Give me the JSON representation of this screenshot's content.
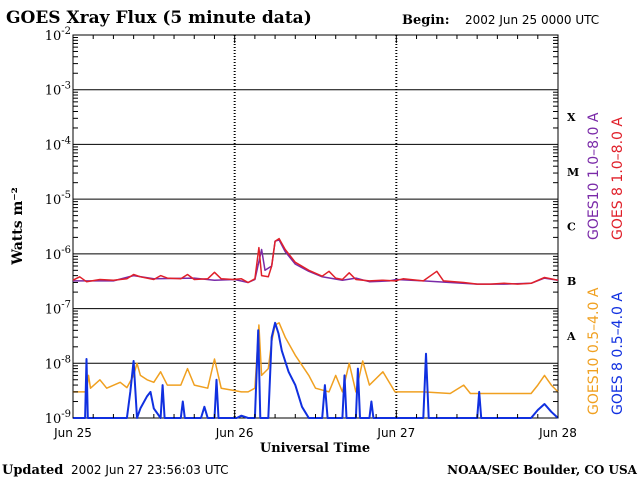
{
  "header": {
    "title": "GOES Xray Flux (5 minute data)",
    "begin_label": "Begin:",
    "begin_value": "2002 Jun 25 0000 UTC"
  },
  "footer": {
    "updated_label": "Updated",
    "updated_value": "2002 Jun 27 23:56:03 UTC",
    "source": "NOAA/SEC Boulder, CO USA"
  },
  "chart_data": {
    "type": "line",
    "title": "GOES Xray Flux (5 minute data)",
    "xlabel": "Universal Time",
    "ylabel": "Watts m⁻²",
    "y_scale": "log",
    "ylim": [
      1e-09,
      0.01
    ],
    "xlim_hours": [
      0,
      72
    ],
    "x_ticks": [
      {
        "h": 0,
        "label": "Jun 25"
      },
      {
        "h": 24,
        "label": "Jun 26"
      },
      {
        "h": 48,
        "label": "Jun 27"
      },
      {
        "h": 72,
        "label": "Jun 28"
      }
    ],
    "y_ticks": [
      {
        "exp": -2,
        "base": "10",
        "sup": "-2"
      },
      {
        "exp": -3,
        "base": "10",
        "sup": "-3"
      },
      {
        "exp": -4,
        "base": "10",
        "sup": "-4"
      },
      {
        "exp": -5,
        "base": "10",
        "sup": "-5"
      },
      {
        "exp": -6,
        "base": "10",
        "sup": "-6"
      },
      {
        "exp": -7,
        "base": "10",
        "sup": "-7"
      },
      {
        "exp": -8,
        "base": "10",
        "sup": "-8"
      },
      {
        "exp": -9,
        "base": "10",
        "sup": "-9"
      }
    ],
    "flare_classes": [
      {
        "label": "X",
        "exp": -3.5
      },
      {
        "label": "M",
        "exp": -4.5
      },
      {
        "label": "C",
        "exp": -5.5
      },
      {
        "label": "B",
        "exp": -6.5
      },
      {
        "label": "A",
        "exp": -7.5
      }
    ],
    "grid": true,
    "legend": [
      {
        "label": "GOES10 1.0–8.0 A",
        "color": "#7a2aa8"
      },
      {
        "label": "GOES 8 1.0–8.0 A",
        "color": "#e0202a"
      },
      {
        "label": "GOES10 0.5–4.0 A",
        "color": "#f0a020"
      },
      {
        "label": "GOES 8 0.5–4.0 A",
        "color": "#1030e0"
      }
    ],
    "series": [
      {
        "name": "GOES10 1.0–8.0 A",
        "color": "#7a2aa8",
        "points": [
          [
            0,
            3.2e-07
          ],
          [
            6,
            3.2e-07
          ],
          [
            9,
            4e-07
          ],
          [
            12,
            3.5e-07
          ],
          [
            18,
            3.6e-07
          ],
          [
            21,
            3.3e-07
          ],
          [
            24,
            3.4e-07
          ],
          [
            26,
            3e-07
          ],
          [
            27,
            3.4e-07
          ],
          [
            28,
            1.2e-06
          ],
          [
            28.5,
            5e-07
          ],
          [
            29.5,
            6e-07
          ],
          [
            30,
            1.7e-06
          ],
          [
            30.6,
            1.8e-06
          ],
          [
            31.5,
            1.1e-06
          ],
          [
            33,
            6.5e-07
          ],
          [
            35,
            4.8e-07
          ],
          [
            37,
            3.8e-07
          ],
          [
            40,
            3.3e-07
          ],
          [
            42,
            3.6e-07
          ],
          [
            44,
            3.1e-07
          ],
          [
            47,
            3.2e-07
          ],
          [
            48,
            3.4e-07
          ],
          [
            52,
            3.2e-07
          ],
          [
            56,
            3e-07
          ],
          [
            60,
            2.8e-07
          ],
          [
            64,
            2.8e-07
          ],
          [
            68,
            2.9e-07
          ],
          [
            70,
            3.6e-07
          ],
          [
            72,
            3.3e-07
          ]
        ]
      },
      {
        "name": "GOES 8 1.0–8.0 A",
        "color": "#e0202a",
        "points": [
          [
            0,
            3.3e-07
          ],
          [
            1,
            3.8e-07
          ],
          [
            2,
            3.1e-07
          ],
          [
            4,
            3.4e-07
          ],
          [
            6,
            3.3e-07
          ],
          [
            8,
            3.5e-07
          ],
          [
            9,
            4.2e-07
          ],
          [
            10,
            3.8e-07
          ],
          [
            12,
            3.4e-07
          ],
          [
            13,
            4e-07
          ],
          [
            14,
            3.6e-07
          ],
          [
            16,
            3.5e-07
          ],
          [
            17,
            4.2e-07
          ],
          [
            18,
            3.4e-07
          ],
          [
            20,
            3.5e-07
          ],
          [
            21,
            4.6e-07
          ],
          [
            22,
            3.5e-07
          ],
          [
            23.8,
            3.4e-07
          ],
          [
            25,
            3.5e-07
          ],
          [
            26,
            3e-07
          ],
          [
            27,
            3.5e-07
          ],
          [
            27.6,
            1.3e-06
          ],
          [
            28,
            4e-07
          ],
          [
            29,
            3.8e-07
          ],
          [
            29.5,
            6e-07
          ],
          [
            30,
            1.7e-06
          ],
          [
            30.6,
            1.9e-06
          ],
          [
            31.5,
            1.2e-06
          ],
          [
            33,
            7e-07
          ],
          [
            35,
            5e-07
          ],
          [
            37,
            3.9e-07
          ],
          [
            38,
            4.8e-07
          ],
          [
            39,
            3.6e-07
          ],
          [
            40,
            3.4e-07
          ],
          [
            41,
            4.5e-07
          ],
          [
            42,
            3.4e-07
          ],
          [
            44,
            3.2e-07
          ],
          [
            46,
            3.3e-07
          ],
          [
            47.8,
            3.2e-07
          ],
          [
            49,
            3.5e-07
          ],
          [
            52,
            3.2e-07
          ],
          [
            54,
            4.8e-07
          ],
          [
            55,
            3.2e-07
          ],
          [
            58,
            3e-07
          ],
          [
            60,
            2.8e-07
          ],
          [
            62,
            2.8e-07
          ],
          [
            64,
            2.9e-07
          ],
          [
            66,
            2.8e-07
          ],
          [
            68,
            2.9e-07
          ],
          [
            70,
            3.7e-07
          ],
          [
            72,
            3.3e-07
          ]
        ]
      },
      {
        "name": "GOES10 0.5–4.0 A",
        "color": "#f0a020",
        "points": [
          [
            0,
            3e-09
          ],
          [
            2,
            3e-09
          ],
          [
            2.3,
            6e-09
          ],
          [
            2.6,
            3.5e-09
          ],
          [
            4,
            5e-09
          ],
          [
            5,
            3.5e-09
          ],
          [
            7,
            4.5e-09
          ],
          [
            8,
            3.6e-09
          ],
          [
            9,
            6e-09
          ],
          [
            9.5,
            1e-08
          ],
          [
            10,
            6e-09
          ],
          [
            11,
            5e-09
          ],
          [
            12,
            4.5e-09
          ],
          [
            13,
            7e-09
          ],
          [
            14,
            4e-09
          ],
          [
            16,
            4e-09
          ],
          [
            17,
            8e-09
          ],
          [
            18,
            4e-09
          ],
          [
            20,
            3.5e-09
          ],
          [
            21,
            1.2e-08
          ],
          [
            22,
            3.5e-09
          ],
          [
            23.8,
            3.2e-09
          ],
          [
            25,
            3e-09
          ],
          [
            26,
            3e-09
          ],
          [
            27,
            3.5e-09
          ],
          [
            27.6,
            5e-08
          ],
          [
            28,
            6e-09
          ],
          [
            29,
            8e-09
          ],
          [
            29.5,
            2.5e-08
          ],
          [
            30,
            5e-08
          ],
          [
            30.6,
            5.5e-08
          ],
          [
            31.5,
            3e-08
          ],
          [
            33,
            1.4e-08
          ],
          [
            35,
            6e-09
          ],
          [
            36,
            3.5e-09
          ],
          [
            38,
            3e-09
          ],
          [
            39,
            6e-09
          ],
          [
            40,
            3e-09
          ],
          [
            41,
            1e-08
          ],
          [
            42,
            3e-09
          ],
          [
            43,
            1.1e-08
          ],
          [
            44,
            4e-09
          ],
          [
            46,
            7e-09
          ],
          [
            47.8,
            3e-09
          ],
          [
            49,
            3e-09
          ],
          [
            52,
            3e-09
          ],
          [
            56,
            2.8e-09
          ],
          [
            58,
            4e-09
          ],
          [
            59,
            2.8e-09
          ],
          [
            62,
            2.8e-09
          ],
          [
            66,
            2.8e-09
          ],
          [
            68,
            2.8e-09
          ],
          [
            69,
            4e-09
          ],
          [
            70,
            6e-09
          ],
          [
            71,
            4e-09
          ],
          [
            72,
            3e-09
          ]
        ]
      },
      {
        "name": "GOES 8 0.5–4.0 A",
        "color": "#1030e0",
        "points": [
          [
            0,
            1e-09
          ],
          [
            1.8,
            1e-09
          ],
          [
            2,
            1.2e-08
          ],
          [
            2.2,
            1e-09
          ],
          [
            8,
            1e-09
          ],
          [
            8.5,
            3e-09
          ],
          [
            9,
            1.1e-08
          ],
          [
            9.5,
            1e-09
          ],
          [
            10,
            1.5e-09
          ],
          [
            11,
            2.5e-09
          ],
          [
            11.5,
            3e-09
          ],
          [
            12,
            1.5e-09
          ],
          [
            13,
            1e-09
          ],
          [
            13.3,
            4e-09
          ],
          [
            13.6,
            1e-09
          ],
          [
            16,
            1e-09
          ],
          [
            16.3,
            2e-09
          ],
          [
            16.6,
            1e-09
          ],
          [
            19,
            1e-09
          ],
          [
            19.5,
            1.6e-09
          ],
          [
            20,
            1e-09
          ],
          [
            21,
            1e-09
          ],
          [
            21.3,
            5e-09
          ],
          [
            21.6,
            1e-09
          ],
          [
            23.8,
            1e-09
          ],
          [
            24.3,
            1e-09
          ],
          [
            25,
            1.1e-09
          ],
          [
            26,
            1e-09
          ],
          [
            27,
            1e-09
          ],
          [
            27.5,
            4e-08
          ],
          [
            27.8,
            1e-09
          ],
          [
            29,
            1e-09
          ],
          [
            29.5,
            3e-08
          ],
          [
            30,
            5.5e-08
          ],
          [
            30.5,
            3.5e-08
          ],
          [
            31,
            1.7e-08
          ],
          [
            32,
            7e-09
          ],
          [
            33,
            4e-09
          ],
          [
            34,
            1.6e-09
          ],
          [
            35,
            1e-09
          ],
          [
            37,
            1e-09
          ],
          [
            37.4,
            4e-09
          ],
          [
            37.8,
            1e-09
          ],
          [
            40,
            1e-09
          ],
          [
            40.3,
            6e-09
          ],
          [
            40.6,
            1e-09
          ],
          [
            42,
            1e-09
          ],
          [
            42.3,
            8e-09
          ],
          [
            42.6,
            1e-09
          ],
          [
            44,
            1e-09
          ],
          [
            44.3,
            2e-09
          ],
          [
            44.6,
            1e-09
          ],
          [
            47.8,
            1e-09
          ],
          [
            48.5,
            1e-09
          ],
          [
            52,
            1e-09
          ],
          [
            52.4,
            1.5e-08
          ],
          [
            52.8,
            1e-09
          ],
          [
            60,
            1e-09
          ],
          [
            60.3,
            3e-09
          ],
          [
            60.6,
            1e-09
          ],
          [
            68,
            1e-09
          ],
          [
            69,
            1.4e-09
          ],
          [
            70,
            1.8e-09
          ],
          [
            71,
            1.3e-09
          ],
          [
            72,
            1e-09
          ]
        ]
      }
    ]
  }
}
